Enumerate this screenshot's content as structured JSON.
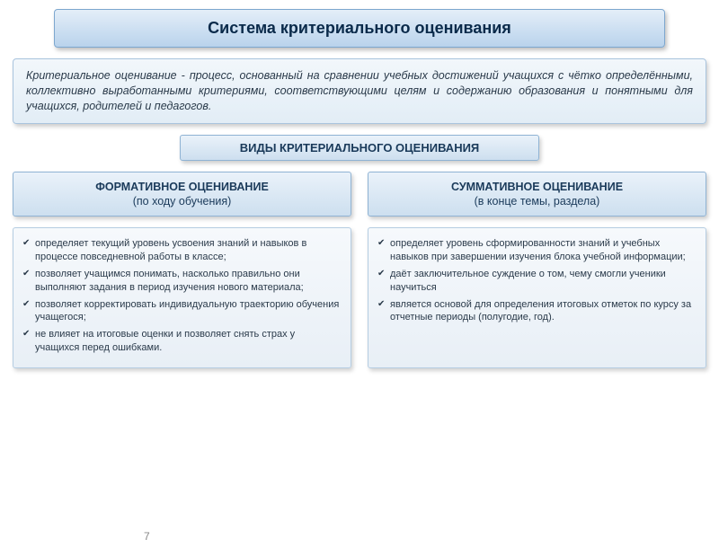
{
  "title": "Система критериального оценивания",
  "definition": "Критериальное оценивание - процесс, основанный на сравнении учебных достижений учащихся с чётко определёнными, коллективно выработанными критериями, соответствующими целям и содержанию образования и понятными для учащихся, родителей и педагогов.",
  "subTitle": "ВИДЫ КРИТЕРИАЛЬНОГО ОЦЕНИВАНИЯ",
  "left": {
    "headBold": "ФОРМАТИВНОЕ ОЦЕНИВАНИЕ",
    "headSub": "(по ходу обучения)",
    "items": [
      "определяет текущий уровень усвоения знаний и навыков в процессе повседневной работы в классе;",
      "позволяет учащимся понимать, насколько правильно они выполняют задания в период изучения нового материала;",
      "позволяет корректировать индивидуальную траекторию обучения учащегося;",
      "не влияет на итоговые оценки и позволяет снять страх у учащихся перед ошибками."
    ]
  },
  "right": {
    "headBold": "СУММАТИВНОЕ ОЦЕНИВАНИЕ",
    "headSub": "(в конце темы, раздела)",
    "items": [
      "определяет уровень сформированности знаний и учебных навыков при завершении изучения блока учебной информации;",
      "даёт заключительное суждение о том, чему смогли ученики научиться",
      "является основой для определения итоговых отметок по курсу за отчетные периоды (полугодие, год)."
    ]
  },
  "pageNumber": "7",
  "colors": {
    "titleGradTop": "#e4eef8",
    "titleGradBottom": "#b9d3ec",
    "boxBorder": "#7da7cf",
    "textDark": "#0a2a4a"
  }
}
